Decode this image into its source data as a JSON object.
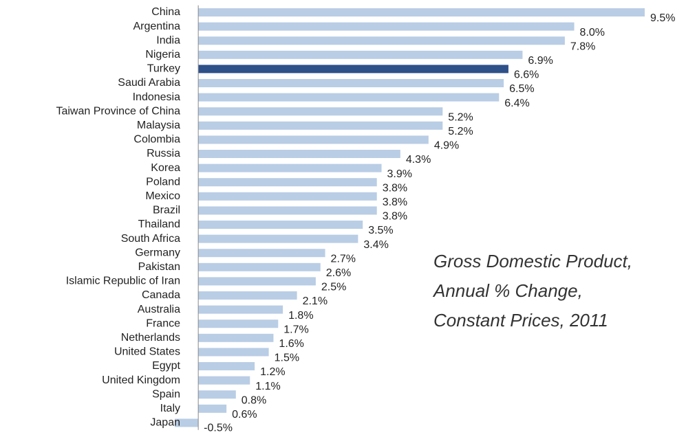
{
  "chart_data": {
    "type": "hbar",
    "annotation": [
      "Gross Domestic Product,",
      "Annual % Change,",
      "Constant Prices, 2011"
    ],
    "categories": [
      "China",
      "Argentina",
      "India",
      "Nigeria",
      "Turkey",
      "Saudi Arabia",
      "Indonesia",
      "Taiwan Province of China",
      "Malaysia",
      "Colombia",
      "Russia",
      "Korea",
      "Poland",
      "Mexico",
      "Brazil",
      "Thailand",
      "South Africa",
      "Germany",
      "Pakistan",
      "Islamic Republic of Iran",
      "Canada",
      "Australia",
      "France",
      "Netherlands",
      "United States",
      "Egypt",
      "United Kingdom",
      "Spain",
      "Italy",
      "Japan"
    ],
    "values": [
      9.5,
      8.0,
      7.8,
      6.9,
      6.6,
      6.5,
      6.4,
      5.2,
      5.2,
      4.9,
      4.3,
      3.9,
      3.8,
      3.8,
      3.8,
      3.5,
      3.4,
      2.7,
      2.6,
      2.5,
      2.1,
      1.8,
      1.7,
      1.6,
      1.5,
      1.2,
      1.1,
      0.8,
      0.6,
      -0.5
    ],
    "value_labels": [
      "9.5%",
      "8.0%",
      "7.8%",
      "6.9%",
      "6.6%",
      "6.5%",
      "6.4%",
      "5.2%",
      "5.2%",
      "4.9%",
      "4.3%",
      "3.9%",
      "3.8%",
      "3.8%",
      "3.8%",
      "3.5%",
      "3.4%",
      "2.7%",
      "2.6%",
      "2.5%",
      "2.1%",
      "1.8%",
      "1.7%",
      "1.6%",
      "1.5%",
      "1.2%",
      "1.1%",
      "0.8%",
      "0.6%",
      "-0.5%"
    ],
    "colors": [
      "#b9cde5",
      "#b9cde5",
      "#b9cde5",
      "#b9cde5",
      "#2f5189",
      "#b9cde5",
      "#b9cde5",
      "#b9cde5",
      "#b9cde5",
      "#b9cde5",
      "#b9cde5",
      "#b9cde5",
      "#b9cde5",
      "#b9cde5",
      "#b9cde5",
      "#b9cde5",
      "#b9cde5",
      "#b9cde5",
      "#b9cde5",
      "#b9cde5",
      "#b9cde5",
      "#b9cde5",
      "#b9cde5",
      "#b9cde5",
      "#b9cde5",
      "#b9cde5",
      "#b9cde5",
      "#b9cde5",
      "#b9cde5",
      "#b9cde5"
    ],
    "xlim": [
      -0.5,
      9.5
    ]
  }
}
